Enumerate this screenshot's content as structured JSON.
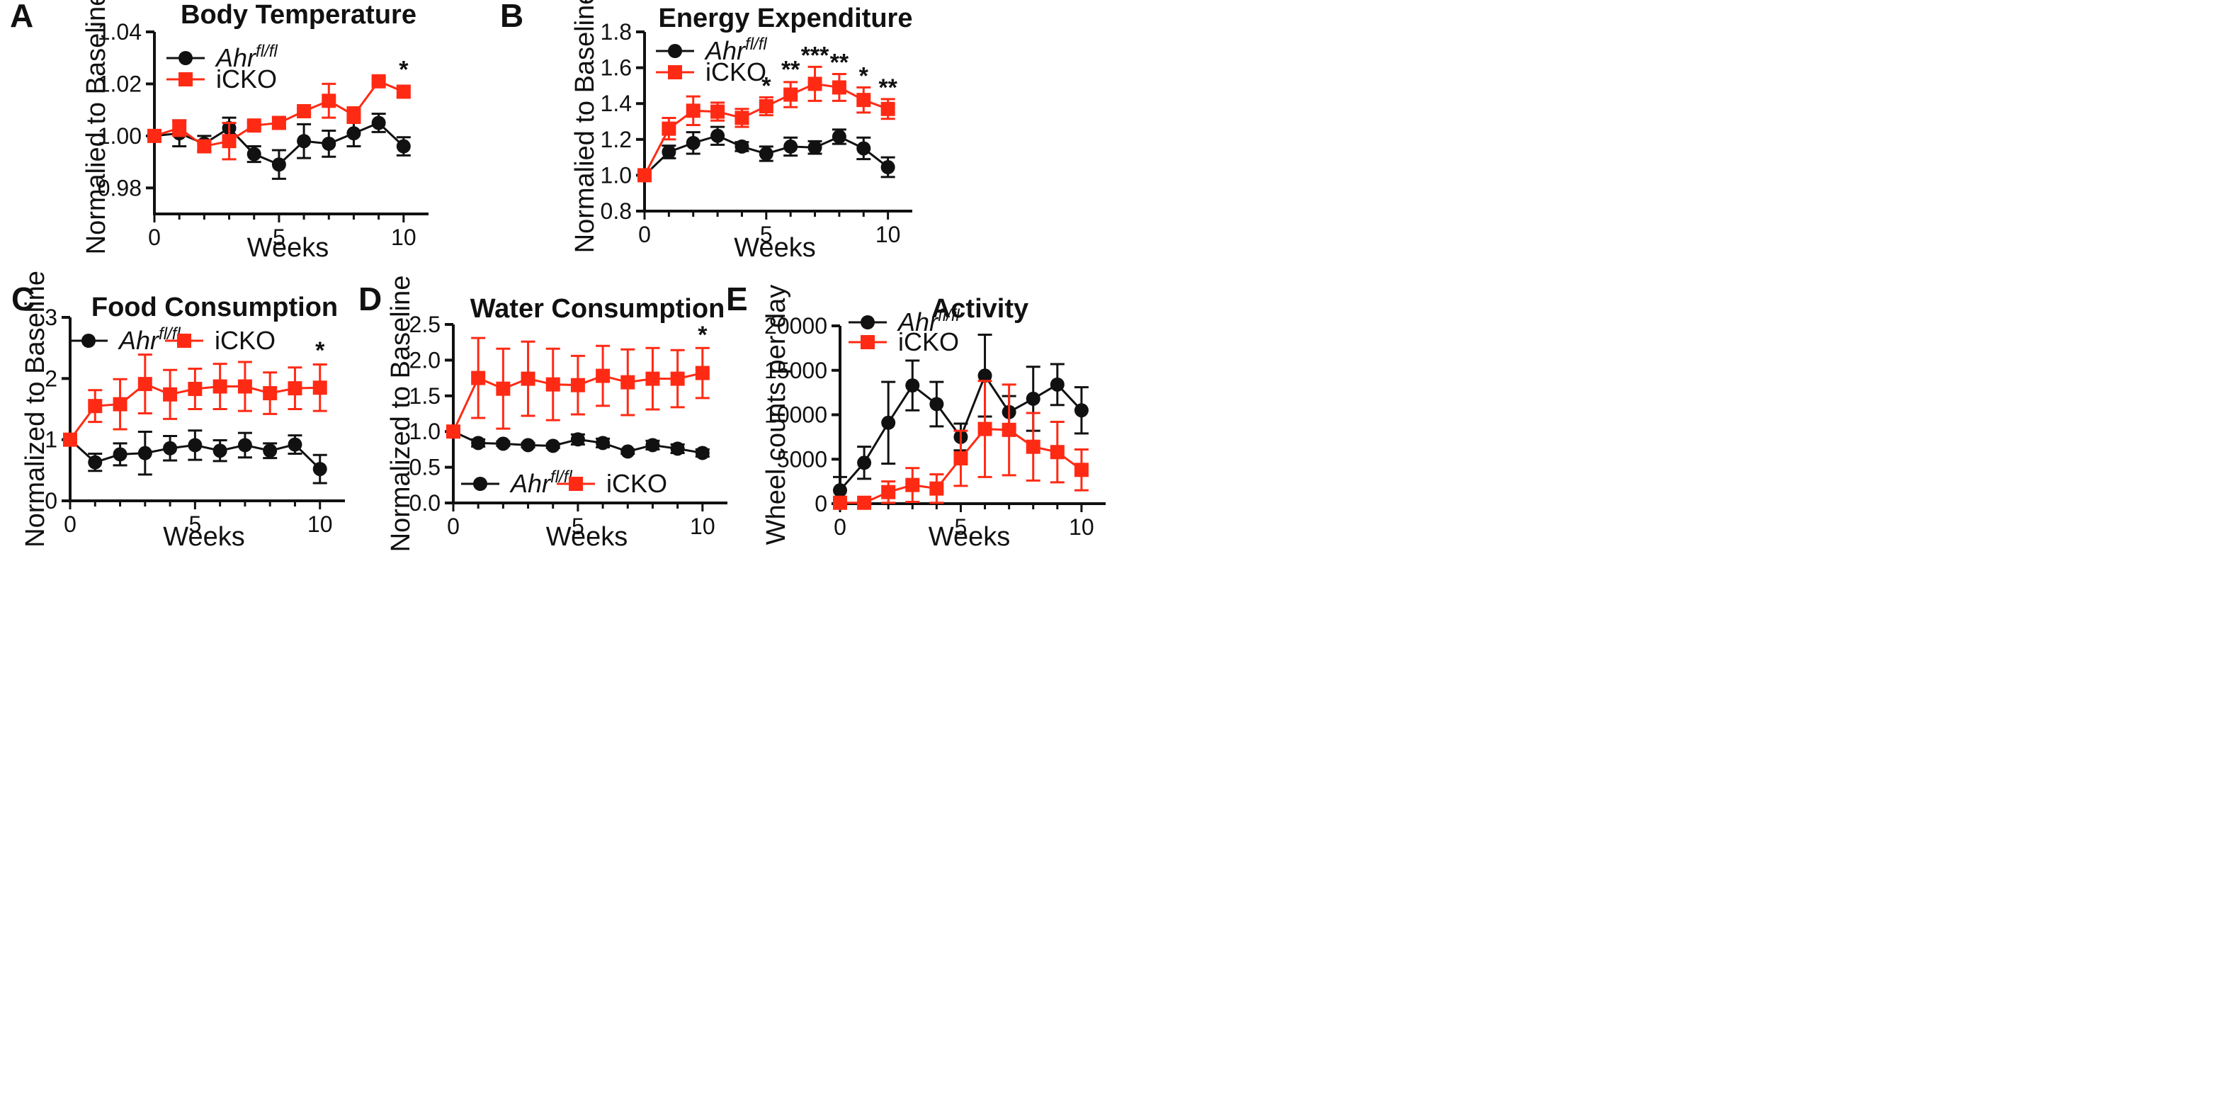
{
  "figure": {
    "background": "#ffffff"
  },
  "colors": {
    "control": "#111111",
    "icko": "#ff2a14"
  },
  "chart_data": [
    {
      "panel": "A",
      "type": "line",
      "title": "Body Temperature",
      "xlabel": "Weeks",
      "ylabel": "Normalied to Baseline",
      "xlim": [
        0,
        11
      ],
      "ylim": [
        0.97,
        1.04
      ],
      "xticks": [
        0,
        5,
        10
      ],
      "xtick_labels": [
        "0",
        "5",
        "10"
      ],
      "yticks": [
        0.98,
        1.0,
        1.02,
        1.04
      ],
      "ytick_labels": [
        "0.98",
        "1.00",
        "1.02",
        "1.04"
      ],
      "legend_position": "top-left",
      "series": [
        {
          "name": "Ahr",
          "superscript": "fl/fl",
          "color": "#111111",
          "marker": "circle",
          "x": [
            0,
            1,
            2,
            3,
            4,
            5,
            6,
            7,
            8,
            9,
            10
          ],
          "y": [
            1.0,
            1.001,
            0.997,
            1.003,
            0.993,
            0.989,
            0.998,
            0.997,
            1.001,
            1.005,
            0.996
          ],
          "err": [
            0,
            0.005,
            0.003,
            0.004,
            0.003,
            0.0055,
            0.0065,
            0.005,
            0.005,
            0.0035,
            0.0035
          ]
        },
        {
          "name": "iCKO",
          "superscript": "",
          "color": "#ff2a14",
          "marker": "square",
          "x": [
            0,
            1,
            2,
            3,
            4,
            5,
            6,
            7,
            8,
            9,
            10
          ],
          "y": [
            1.0,
            1.003,
            0.996,
            0.998,
            1.004,
            1.005,
            1.0095,
            1.0135,
            1.008,
            1.021,
            1.017
          ],
          "err": [
            0,
            0.003,
            0.002,
            0.007,
            0.001,
            0.002,
            0.001,
            0.0065,
            0.003,
            0.001,
            0.002
          ]
        }
      ],
      "annotations": [
        {
          "x": 10,
          "y": 1.0225,
          "text": "*"
        }
      ]
    },
    {
      "panel": "B",
      "type": "line",
      "title": "Energy Expenditure",
      "xlabel": "Weeks",
      "ylabel": "Normalied to Baseline",
      "xlim": [
        0,
        11
      ],
      "ylim": [
        0.8,
        1.8
      ],
      "xticks": [
        0,
        5,
        10
      ],
      "xtick_labels": [
        "0",
        "5",
        "10"
      ],
      "yticks": [
        0.8,
        1.0,
        1.2,
        1.4,
        1.6,
        1.8
      ],
      "ytick_labels": [
        "0.8",
        "1.0",
        "1.2",
        "1.4",
        "1.6",
        "1.8"
      ],
      "legend_position": "top-left",
      "series": [
        {
          "name": "Ahr",
          "superscript": "fl/fl",
          "color": "#111111",
          "marker": "circle",
          "x": [
            0,
            1,
            2,
            3,
            4,
            5,
            6,
            7,
            8,
            9,
            10
          ],
          "y": [
            1.0,
            1.13,
            1.18,
            1.22,
            1.16,
            1.12,
            1.16,
            1.155,
            1.215,
            1.15,
            1.045
          ],
          "err": [
            0,
            0.035,
            0.06,
            0.05,
            0.025,
            0.04,
            0.05,
            0.035,
            0.04,
            0.06,
            0.055
          ]
        },
        {
          "name": "iCKO",
          "superscript": "",
          "color": "#ff2a14",
          "marker": "square",
          "x": [
            0,
            1,
            2,
            3,
            4,
            5,
            6,
            7,
            8,
            9,
            10
          ],
          "y": [
            1.0,
            1.26,
            1.36,
            1.355,
            1.32,
            1.385,
            1.45,
            1.51,
            1.49,
            1.42,
            1.37
          ],
          "err": [
            0,
            0.06,
            0.08,
            0.05,
            0.05,
            0.05,
            0.07,
            0.095,
            0.075,
            0.07,
            0.055
          ]
        }
      ],
      "annotations": [
        {
          "x": 5,
          "y": 1.455,
          "text": "*"
        },
        {
          "x": 6,
          "y": 1.545,
          "text": "**"
        },
        {
          "x": 7,
          "y": 1.625,
          "text": "***"
        },
        {
          "x": 8,
          "y": 1.585,
          "text": "**"
        },
        {
          "x": 9,
          "y": 1.51,
          "text": "*"
        },
        {
          "x": 10,
          "y": 1.445,
          "text": "**"
        }
      ]
    },
    {
      "panel": "C",
      "type": "line",
      "title": "Food Consumption",
      "xlabel": "Weeks",
      "ylabel": "Normalized to Baseline",
      "xlim": [
        0,
        11
      ],
      "ylim": [
        0,
        3
      ],
      "xticks": [
        0,
        5,
        10
      ],
      "xtick_labels": [
        "0",
        "5",
        "10"
      ],
      "yticks": [
        0,
        1,
        2,
        3
      ],
      "ytick_labels": [
        "0",
        "1",
        "2",
        "3"
      ],
      "legend_position": "top-left-horizontal",
      "series": [
        {
          "name": "Ahr",
          "superscript": "fl/fl",
          "color": "#111111",
          "marker": "circle",
          "x": [
            0,
            1,
            2,
            3,
            4,
            5,
            6,
            7,
            8,
            9,
            10
          ],
          "y": [
            1.0,
            0.63,
            0.76,
            0.78,
            0.86,
            0.91,
            0.82,
            0.91,
            0.82,
            0.92,
            0.52
          ],
          "err": [
            0,
            0.14,
            0.18,
            0.35,
            0.2,
            0.24,
            0.17,
            0.2,
            0.12,
            0.15,
            0.23
          ]
        },
        {
          "name": "iCKO",
          "superscript": "",
          "color": "#ff2a14",
          "marker": "square",
          "x": [
            0,
            1,
            2,
            3,
            4,
            5,
            6,
            7,
            8,
            9,
            10
          ],
          "y": [
            1.0,
            1.55,
            1.58,
            1.91,
            1.74,
            1.83,
            1.87,
            1.87,
            1.76,
            1.84,
            1.85
          ],
          "err": [
            0,
            0.26,
            0.41,
            0.48,
            0.4,
            0.33,
            0.37,
            0.4,
            0.34,
            0.34,
            0.38
          ]
        }
      ],
      "annotations": [
        {
          "x": 10,
          "y": 2.33,
          "text": "*"
        }
      ]
    },
    {
      "panel": "D",
      "type": "line",
      "title": "Water Consumption",
      "xlabel": "Weeks",
      "ylabel": "Normalized to Baseline",
      "xlim": [
        0,
        11
      ],
      "ylim": [
        0,
        2.5
      ],
      "xticks": [
        0,
        5,
        10
      ],
      "xtick_labels": [
        "0",
        "5",
        "10"
      ],
      "yticks": [
        0,
        0.5,
        1.0,
        1.5,
        2.0,
        2.5
      ],
      "ytick_labels": [
        "0.0",
        "0.5",
        "1.0",
        "1.5",
        "2.0",
        "2.5"
      ],
      "legend_position": "bottom-left-horizontal",
      "series": [
        {
          "name": "Ahr",
          "superscript": "fl/fl",
          "color": "#111111",
          "marker": "circle",
          "x": [
            0,
            1,
            2,
            3,
            4,
            5,
            6,
            7,
            8,
            9,
            10
          ],
          "y": [
            1.0,
            0.84,
            0.83,
            0.81,
            0.8,
            0.89,
            0.84,
            0.72,
            0.81,
            0.76,
            0.7
          ],
          "err": [
            0,
            0.05,
            0.03,
            0.03,
            0.03,
            0.07,
            0.06,
            0.03,
            0.06,
            0.06,
            0.05
          ]
        },
        {
          "name": "iCKO",
          "superscript": "",
          "color": "#ff2a14",
          "marker": "square",
          "x": [
            0,
            1,
            2,
            3,
            4,
            5,
            6,
            7,
            8,
            9,
            10
          ],
          "y": [
            1.0,
            1.75,
            1.6,
            1.74,
            1.66,
            1.65,
            1.78,
            1.69,
            1.74,
            1.74,
            1.82
          ],
          "err": [
            0,
            0.56,
            0.56,
            0.52,
            0.5,
            0.41,
            0.42,
            0.46,
            0.43,
            0.4,
            0.35
          ]
        }
      ],
      "annotations": [
        {
          "x": 10,
          "y": 2.24,
          "text": "*"
        }
      ]
    },
    {
      "panel": "E",
      "type": "line",
      "title": "Activity",
      "xlabel": "Weeks",
      "ylabel": "Wheel counts per day",
      "xlim": [
        0,
        11
      ],
      "ylim": [
        0,
        20000
      ],
      "xticks": [
        0,
        5,
        10
      ],
      "xtick_labels": [
        "0",
        "5",
        "10"
      ],
      "yticks": [
        0,
        5000,
        10000,
        15000,
        20000
      ],
      "ytick_labels": [
        "0",
        "5000",
        "10000",
        "15000",
        "20000"
      ],
      "legend_position": "top-left",
      "series": [
        {
          "name": "Ahr",
          "superscript": "fl/fl",
          "color": "#111111",
          "marker": "circle",
          "x": [
            0,
            1,
            2,
            3,
            4,
            5,
            6,
            7,
            8,
            9,
            10
          ],
          "y": [
            1500,
            4600,
            9100,
            13300,
            11200,
            7500,
            14400,
            10300,
            11800,
            13400,
            10500
          ],
          "err": [
            1500,
            1800,
            4600,
            2800,
            2500,
            1500,
            4600,
            1800,
            3600,
            2300,
            2600
          ]
        },
        {
          "name": "iCKO",
          "superscript": "",
          "color": "#ff2a14",
          "marker": "square",
          "x": [
            0,
            1,
            2,
            3,
            4,
            5,
            6,
            7,
            8,
            9,
            10
          ],
          "y": [
            100,
            100,
            1300,
            2100,
            1700,
            5100,
            8400,
            8300,
            6400,
            5800,
            3800
          ],
          "err": [
            100,
            100,
            1200,
            1900,
            1600,
            3100,
            5400,
            5100,
            3800,
            3400,
            2300
          ]
        }
      ],
      "annotations": []
    }
  ]
}
